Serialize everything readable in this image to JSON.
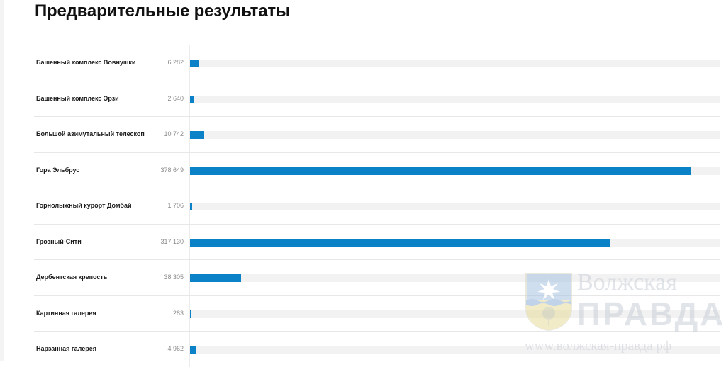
{
  "page": {
    "title": "Предварительные результаты"
  },
  "chart_data": {
    "type": "bar",
    "orientation": "horizontal",
    "title": "Предварительные результаты",
    "max_value": 400000,
    "colors": {
      "bar": "#0b82c8",
      "track": "#f2f2f2"
    },
    "rows": [
      {
        "label": "Башенный комплекс Вовнушки",
        "value": 6282,
        "value_label": "6 282"
      },
      {
        "label": "Башенный комплекс Эрзи",
        "value": 2640,
        "value_label": "2 640"
      },
      {
        "label": "Большой азимутальный телескоп",
        "value": 10742,
        "value_label": "10 742"
      },
      {
        "label": "Гора Эльбрус",
        "value": 378649,
        "value_label": "378 649"
      },
      {
        "label": "Горнолыжный курорт Домбай",
        "value": 1706,
        "value_label": "1 706"
      },
      {
        "label": "Грозный-Сити",
        "value": 317130,
        "value_label": "317 130"
      },
      {
        "label": "Дербентская крепость",
        "value": 38305,
        "value_label": "38 305"
      },
      {
        "label": "Картинная галерея",
        "value": 283,
        "value_label": "283"
      },
      {
        "label": "Нарзанная галерея",
        "value": 4962,
        "value_label": "4 962"
      }
    ]
  },
  "watermark": {
    "title": "Волжская",
    "subtitle": "ПРАВДА",
    "url": "www.волжская-правда.рф"
  }
}
